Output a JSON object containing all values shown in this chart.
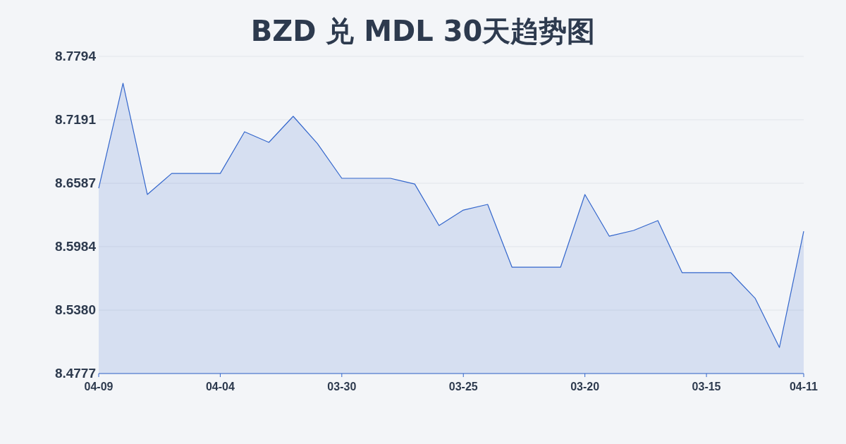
{
  "chart_data": {
    "type": "area",
    "title": "BZD 兑 MDL 30天趋势图",
    "categories": [
      "04-09",
      null,
      null,
      null,
      null,
      "04-04",
      null,
      null,
      null,
      null,
      "03-30",
      null,
      null,
      null,
      null,
      "03-25",
      null,
      null,
      null,
      null,
      "03-20",
      null,
      null,
      null,
      null,
      "03-15",
      null,
      null,
      null,
      "04-11"
    ],
    "series": [
      {
        "color": "#3366cc",
        "values": [
          8.654,
          8.7539,
          8.648,
          8.668,
          8.668,
          8.668,
          8.7077,
          8.6976,
          8.7224,
          8.6963,
          8.6634,
          8.6634,
          8.6634,
          8.658,
          8.6185,
          8.6332,
          8.6386,
          8.5789,
          8.5789,
          8.5789,
          8.648,
          8.6084,
          8.6138,
          8.6232,
          8.5736,
          8.5736,
          8.5736,
          8.5494,
          8.5025,
          8.6131
        ]
      }
    ],
    "ylim": [
      8.4777,
      8.7794
    ],
    "yticks": [
      8.4777,
      {
        "value": 8.538,
        "label": "8.5380"
      },
      8.5984,
      8.6587,
      8.7191,
      8.7794
    ],
    "grid": "y",
    "marker": "none",
    "line_style": "solid"
  }
}
